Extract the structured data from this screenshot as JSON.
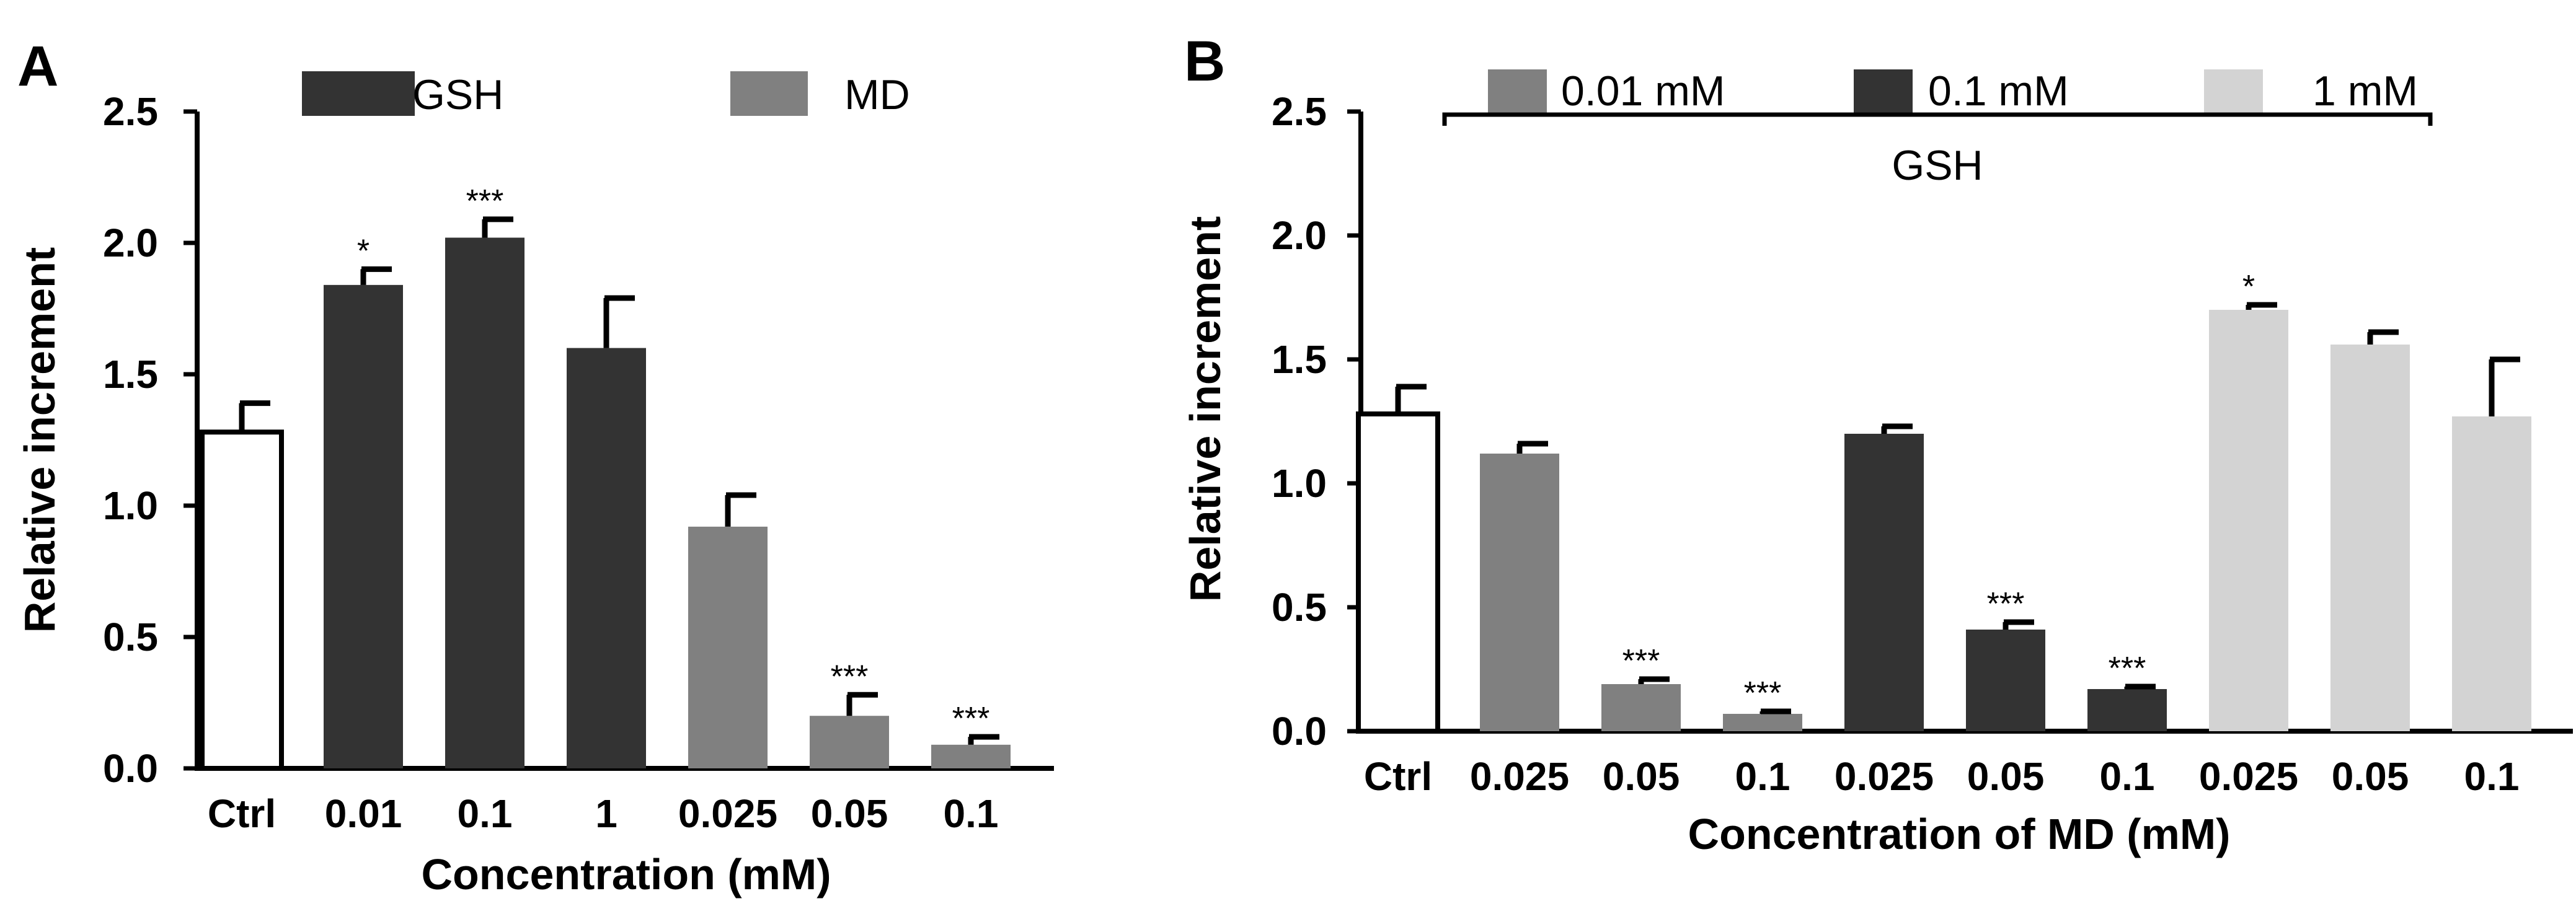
{
  "chart_data": [
    {
      "panel": "A",
      "type": "bar",
      "xlabel": "Concentration (mM)",
      "ylabel": "Relative increment",
      "ylim": [
        0,
        2.5
      ],
      "yticks": [
        "0.0",
        "0.5",
        "1.0",
        "1.5",
        "2.0",
        "2.5"
      ],
      "categories": [
        "Ctrl",
        "0.01",
        "0.1",
        "1",
        "0.025",
        "0.05",
        "0.1"
      ],
      "values": [
        1.28,
        1.84,
        2.02,
        1.6,
        0.92,
        0.2,
        0.09
      ],
      "errors": [
        0.11,
        0.06,
        0.07,
        0.19,
        0.12,
        0.08,
        0.03
      ],
      "groups": [
        "Ctrl",
        "GSH",
        "GSH",
        "GSH",
        "MD",
        "MD",
        "MD"
      ],
      "significance": [
        "",
        "*",
        "***",
        "",
        "",
        "***",
        "***"
      ],
      "legend": [
        {
          "label": "GSH",
          "color": "#333333"
        },
        {
          "label": "MD",
          "color": "#808080"
        }
      ],
      "colors": {
        "Ctrl": "#ffffff",
        "GSH": "#333333",
        "MD": "#808080"
      }
    },
    {
      "panel": "B",
      "type": "bar",
      "xlabel": "Concentration of MD (mM)",
      "ylabel": "Relative increment",
      "ylim": [
        0,
        2.5
      ],
      "yticks": [
        "0.0",
        "0.5",
        "1.0",
        "1.5",
        "2.0",
        "2.5"
      ],
      "categories": [
        "Ctrl",
        "0.025",
        "0.05",
        "0.1",
        "0.025",
        "0.05",
        "0.1",
        "0.025",
        "0.05",
        "0.1"
      ],
      "values": [
        1.28,
        1.12,
        0.19,
        0.07,
        1.2,
        0.41,
        0.17,
        1.7,
        1.56,
        1.27
      ],
      "errors": [
        0.11,
        0.04,
        0.02,
        0.01,
        0.03,
        0.03,
        0.01,
        0.02,
        0.05,
        0.23
      ],
      "groups": [
        "Ctrl",
        "0.01 mM",
        "0.01 mM",
        "0.01 mM",
        "0.1 mM",
        "0.1 mM",
        "0.1 mM",
        "1 mM",
        "1 mM",
        "1 mM"
      ],
      "significance": [
        "",
        "",
        "***",
        "***",
        "",
        "***",
        "***",
        "*",
        "",
        ""
      ],
      "legend": [
        {
          "label": "0.01 mM",
          "color": "#808080"
        },
        {
          "label": "0.1 mM",
          "color": "#333333"
        },
        {
          "label": "1 mM",
          "color": "#d3d3d3"
        }
      ],
      "legend_group_label": "GSH",
      "colors": {
        "Ctrl": "#ffffff",
        "0.01 mM": "#808080",
        "0.1 mM": "#333333",
        "1 mM": "#d3d3d3"
      }
    }
  ]
}
